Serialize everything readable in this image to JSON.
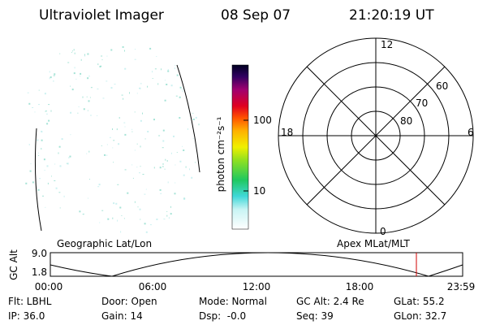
{
  "header": {
    "title": "Ultraviolet Imager",
    "date": "08 Sep 07",
    "time": "21:20:19 UT"
  },
  "colorbar": {
    "label": "photon cm⁻²s⁻¹",
    "ticks": [
      "100",
      "10"
    ]
  },
  "polar": {
    "mlt_labels": [
      "12",
      "18",
      "6",
      "0"
    ],
    "lat_labels": [
      "60",
      "70",
      "80"
    ]
  },
  "orbit": {
    "y_label": "GC Alt",
    "y_ticks": [
      "9.0",
      "1.8"
    ],
    "left_title": "Geographic Lat/Lon",
    "right_title": "Apex MLat/MLT",
    "x_ticks": [
      "00:00",
      "06:00",
      "12:00",
      "18:00",
      "23:59"
    ]
  },
  "status": {
    "rows": [
      [
        "Flt: LBHL",
        "Door: Open",
        "Mode: Normal",
        "GC Alt: 2.4 Re",
        "GLat: 55.2"
      ],
      [
        "IP: 36.0",
        "Gain: 14",
        "Dsp:  -0.0",
        "Seq: 39",
        "GLon: 32.7"
      ]
    ]
  }
}
